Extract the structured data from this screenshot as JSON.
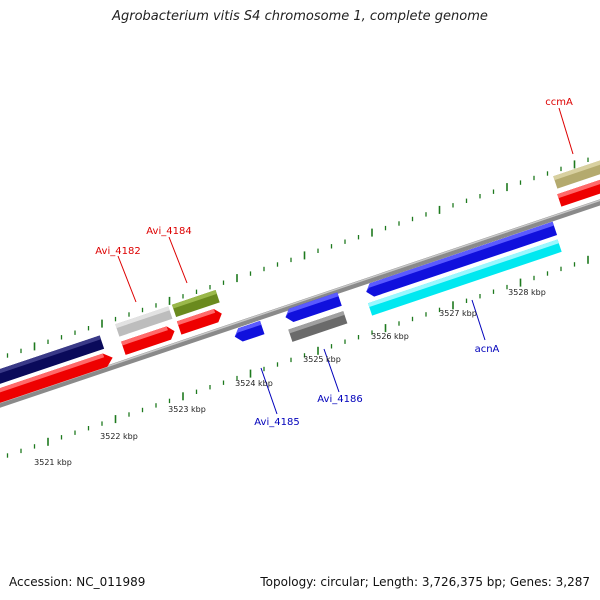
{
  "title": "Agrobacterium vitis S4 chromosome 1, complete genome",
  "footer": {
    "accession": "Accession: NC_011989",
    "summary": "Topology: circular; Length: 3,726,375 bp; Genes: 3,287"
  },
  "colors": {
    "forward_label": "#dd0000",
    "reverse_label": "#0000bb",
    "tick": "#1e7a1e",
    "backbone": "#8a8a8a"
  },
  "scale_labels": [
    "3521 kbp",
    "3522 kbp",
    "3523 kbp",
    "3524 kbp",
    "3525 kbp",
    "3526 kbp",
    "3527 kbp",
    "3528 kbp"
  ],
  "gene_labels": {
    "forward": [
      "ccmA",
      "Avi_4182",
      "Avi_4184"
    ],
    "reverse": [
      "Avi_4185",
      "Avi_4186",
      "acnA"
    ]
  }
}
